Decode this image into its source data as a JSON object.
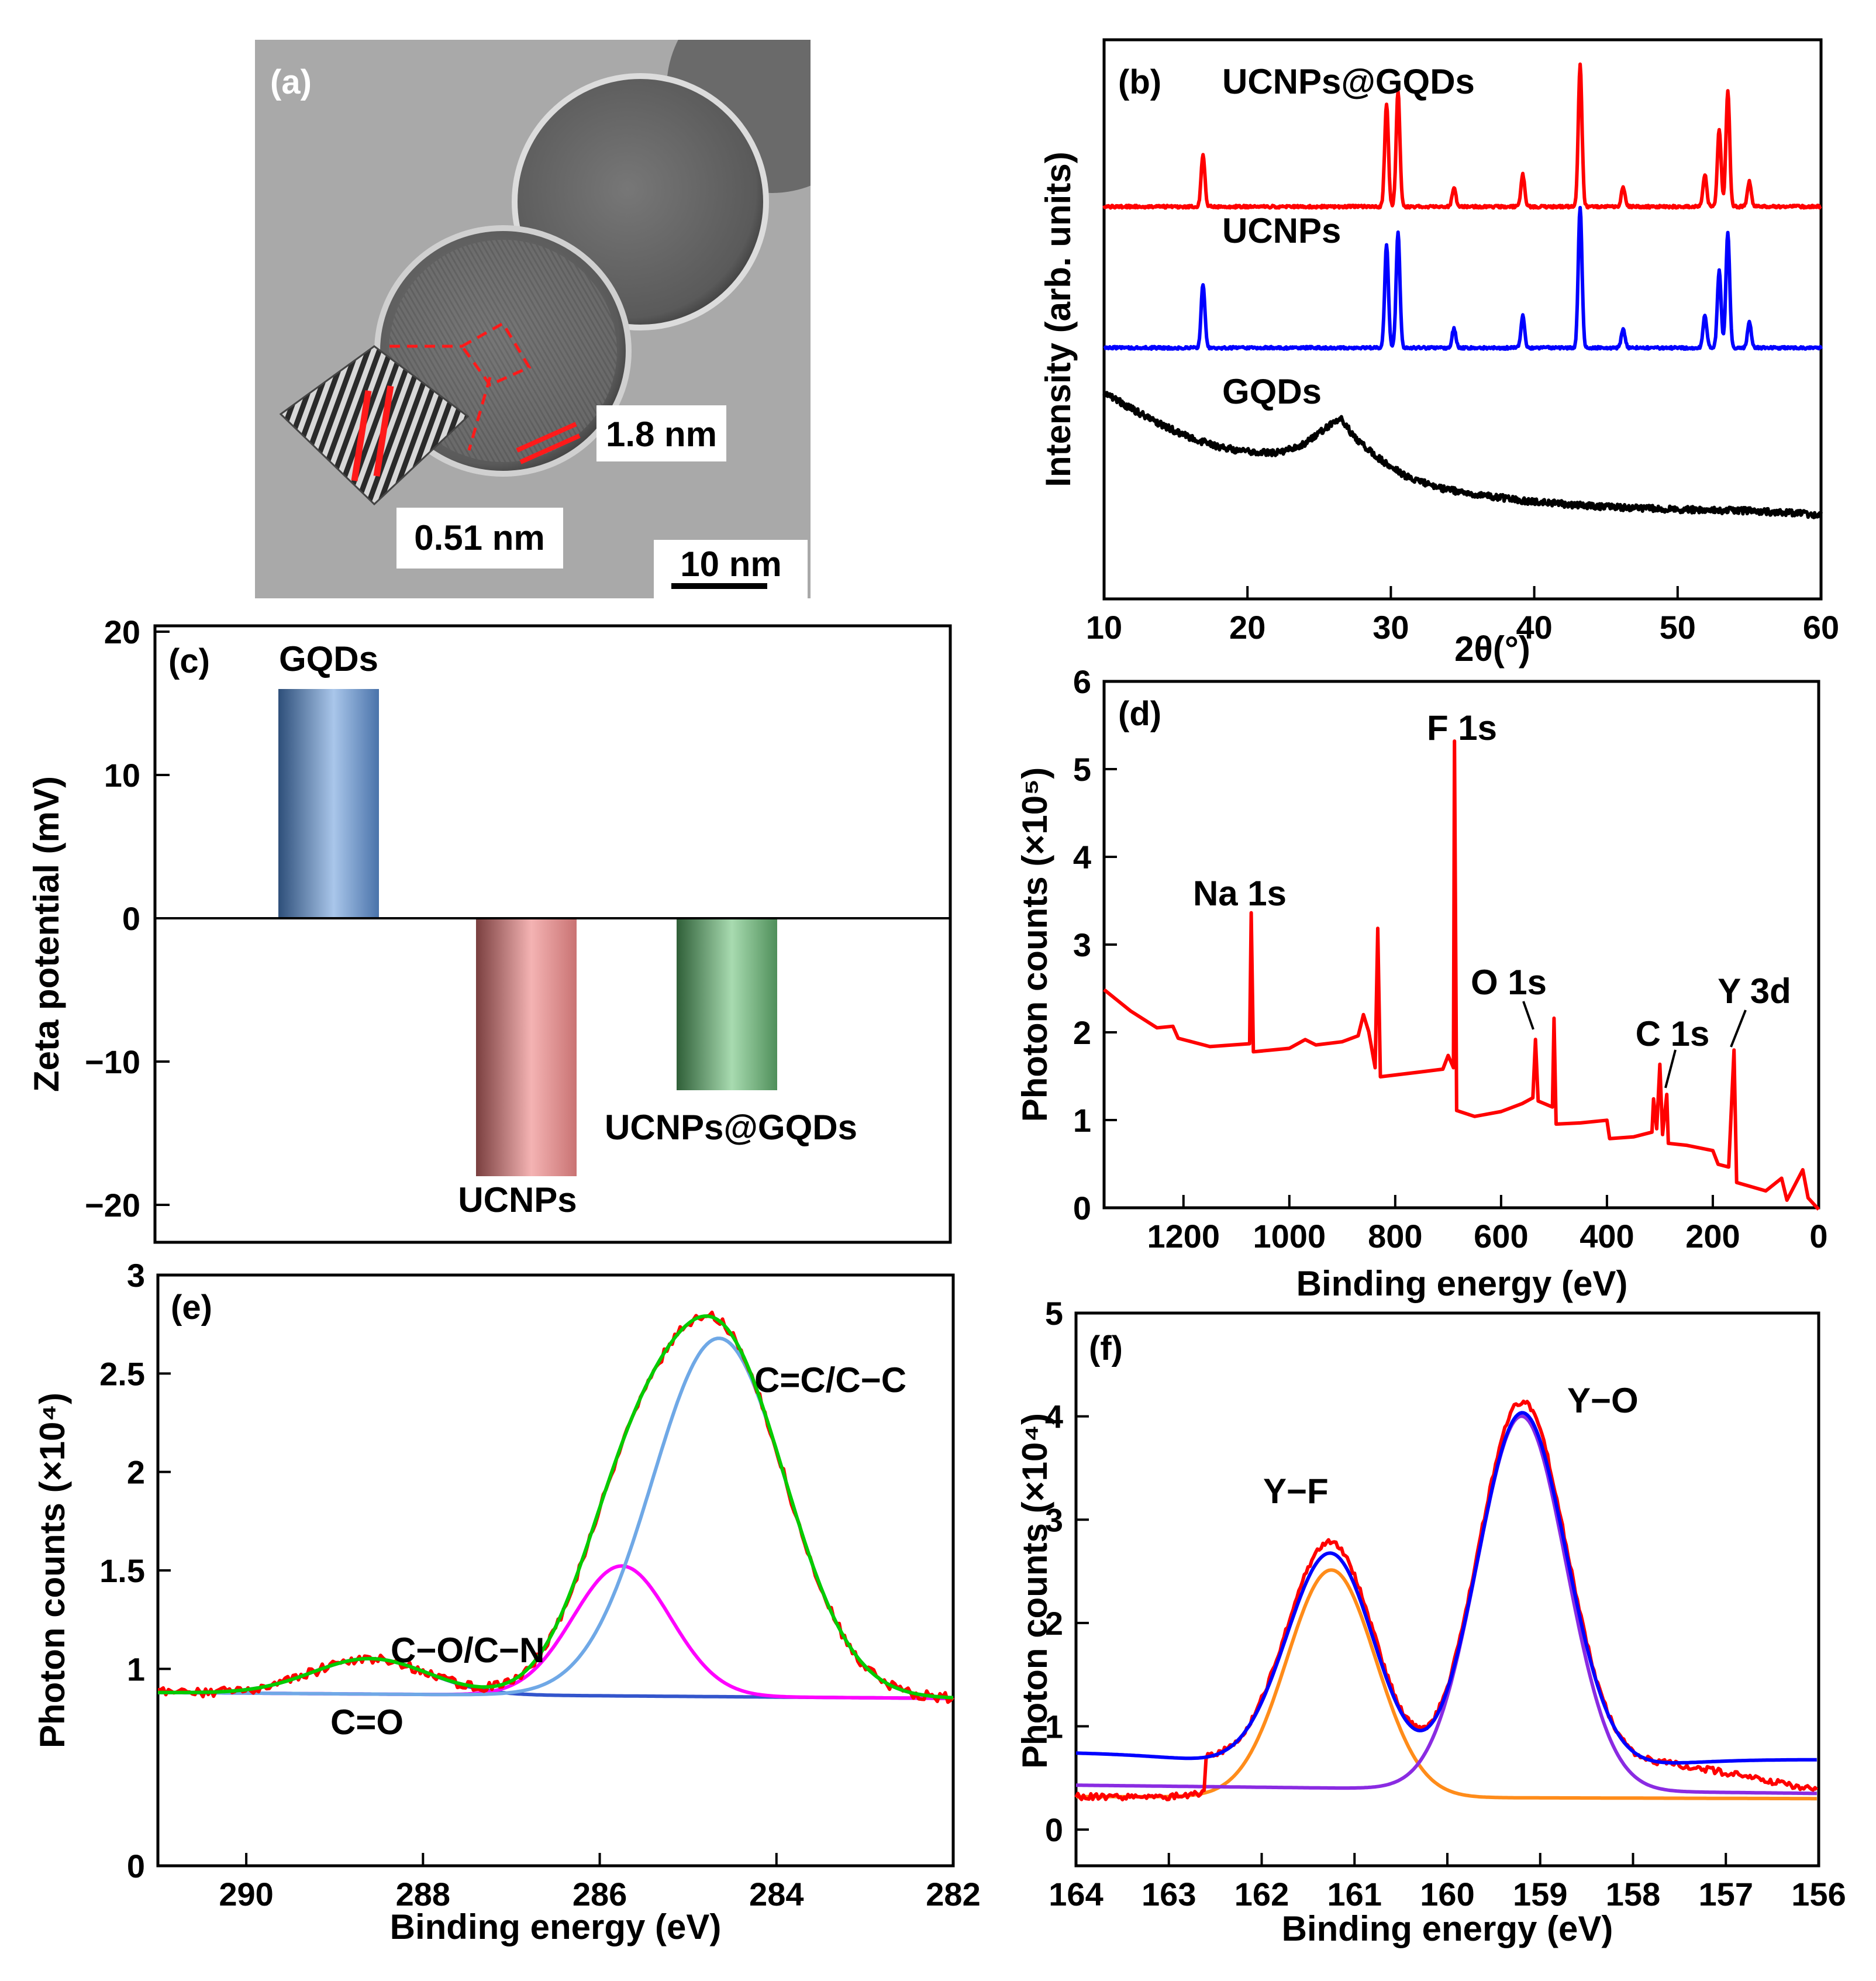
{
  "panel_a": {
    "label": "(a)",
    "scale_bar": "10 nm",
    "d1": "1.8 nm",
    "d2": "0.51 nm"
  },
  "chart_data": [
    {
      "id": "b",
      "type": "line",
      "panel_label": "(b)",
      "xlabel": "2θ(°)",
      "ylabel": "Intensity (arb. units)",
      "xlim": [
        10,
        60
      ],
      "xticks": [
        10,
        20,
        30,
        40,
        50,
        60
      ],
      "y_ticks": "none",
      "series": [
        {
          "name": "UCNPs@GQDs",
          "color": "#ff0000",
          "offset": 2.4,
          "peaks": [
            [
              16.9,
              0.4
            ],
            [
              29.7,
              0.8
            ],
            [
              30.5,
              0.9
            ],
            [
              34.4,
              0.15
            ],
            [
              39.2,
              0.25
            ],
            [
              43.2,
              1.1
            ],
            [
              46.2,
              0.15
            ],
            [
              51.9,
              0.25
            ],
            [
              52.9,
              0.6
            ],
            [
              53.5,
              0.9
            ],
            [
              55.0,
              0.2
            ]
          ]
        },
        {
          "name": "UCNPs",
          "color": "#0000ff",
          "offset": 1.3,
          "peaks": [
            [
              16.9,
              0.5
            ],
            [
              29.7,
              0.8
            ],
            [
              30.5,
              0.9
            ],
            [
              34.4,
              0.15
            ],
            [
              39.2,
              0.25
            ],
            [
              43.2,
              1.1
            ],
            [
              46.2,
              0.15
            ],
            [
              51.9,
              0.25
            ],
            [
              52.9,
              0.6
            ],
            [
              53.5,
              0.9
            ],
            [
              55.0,
              0.2
            ]
          ]
        },
        {
          "name": "GQDs",
          "color": "#000000",
          "offset": 0.0,
          "points": [
            [
              10,
              0.95
            ],
            [
              12,
              0.82
            ],
            [
              14,
              0.7
            ],
            [
              16,
              0.6
            ],
            [
              18,
              0.53
            ],
            [
              20,
              0.49
            ],
            [
              22,
              0.48
            ],
            [
              24,
              0.55
            ],
            [
              25.5,
              0.68
            ],
            [
              26.5,
              0.75
            ],
            [
              27.5,
              0.6
            ],
            [
              29,
              0.45
            ],
            [
              31,
              0.3
            ],
            [
              33,
              0.22
            ],
            [
              35,
              0.17
            ],
            [
              40,
              0.1
            ],
            [
              45,
              0.06
            ],
            [
              50,
              0.04
            ],
            [
              55,
              0.03
            ],
            [
              60,
              0.0
            ]
          ]
        }
      ]
    },
    {
      "id": "c",
      "type": "bar",
      "panel_label": "(c)",
      "ylabel": "Zeta potential (mV)",
      "ylim": [
        -20,
        20
      ],
      "yticks": [
        "-20",
        "-10",
        "0",
        "10",
        "20"
      ],
      "categories": [
        "GQDs",
        "UCNPs",
        "UCNPs@GQDs"
      ],
      "values": [
        16,
        -18,
        -12
      ],
      "colors": [
        "#5b82b8",
        "#d98a8a",
        "#5e9e6a"
      ]
    },
    {
      "id": "d",
      "type": "line",
      "panel_label": "(d)",
      "xlabel": "Binding energy (eV)",
      "ylabel": "Photon counts (×10⁵)",
      "xlim": [
        1350,
        0
      ],
      "ylim": [
        0,
        6
      ],
      "xticks": [
        "1200",
        "1000",
        "800",
        "600",
        "400",
        "200",
        "0"
      ],
      "yticks": [
        "0",
        "1",
        "2",
        "3",
        "4",
        "5",
        "6"
      ],
      "annotations": [
        "F 1s",
        "Na 1s",
        "O 1s",
        "C 1s",
        "Y 3d"
      ],
      "series": [
        {
          "color": "#ff0000",
          "points": [
            [
              1350,
              2.5
            ],
            [
              1300,
              2.25
            ],
            [
              1250,
              2.05
            ],
            [
              1220,
              2.05
            ],
            [
              1210,
              1.92
            ],
            [
              1150,
              1.85
            ],
            [
              1075,
              1.85
            ],
            [
              1072,
              3.35
            ],
            [
              1068,
              1.78
            ],
            [
              1000,
              1.8
            ],
            [
              970,
              1.92
            ],
            [
              950,
              1.85
            ],
            [
              900,
              1.9
            ],
            [
              870,
              1.95
            ],
            [
              860,
              2.2
            ],
            [
              850,
              2.0
            ],
            [
              838,
              1.6
            ],
            [
              833,
              3.2
            ],
            [
              828,
              1.5
            ],
            [
              750,
              1.55
            ],
            [
              710,
              1.6
            ],
            [
              700,
              1.75
            ],
            [
              690,
              1.6
            ],
            [
              688,
              5.3
            ],
            [
              684,
              1.1
            ],
            [
              650,
              1.05
            ],
            [
              600,
              1.1
            ],
            [
              560,
              1.2
            ],
            [
              540,
              1.25
            ],
            [
              535,
              1.9
            ],
            [
              530,
              1.2
            ],
            [
              503,
              1.15
            ],
            [
              500,
              2.15
            ],
            [
              496,
              0.95
            ],
            [
              450,
              0.95
            ],
            [
              400,
              1.0
            ],
            [
              395,
              0.8
            ],
            [
              350,
              0.8
            ],
            [
              315,
              0.85
            ],
            [
              312,
              1.25
            ],
            [
              306,
              0.9
            ],
            [
              300,
              1.65
            ],
            [
              295,
              0.85
            ],
            [
              287,
              1.3
            ],
            [
              284,
              0.75
            ],
            [
              250,
              0.7
            ],
            [
              200,
              0.65
            ],
            [
              190,
              0.5
            ],
            [
              170,
              0.45
            ],
            [
              160,
              1.8
            ],
            [
              155,
              0.3
            ],
            [
              100,
              0.2
            ],
            [
              70,
              0.35
            ],
            [
              60,
              0.1
            ],
            [
              30,
              0.45
            ],
            [
              20,
              0.1
            ],
            [
              0,
              0.0
            ]
          ]
        }
      ]
    },
    {
      "id": "e",
      "type": "line",
      "panel_label": "(e)",
      "xlabel": "Binding energy (eV)",
      "ylabel": "Photon counts (×10⁴)",
      "xlim": [
        291,
        282
      ],
      "ylim": [
        0,
        3
      ],
      "xticks": [
        "290",
        "288",
        "286",
        "284",
        "282"
      ],
      "yticks": [
        "0",
        "1",
        "1.5",
        "2",
        "2.5",
        "3"
      ],
      "annotations": [
        "C=C/C−C",
        "C−O/C−N",
        "C=O"
      ],
      "baseline": [
        0.88,
        0.85
      ],
      "series": [
        {
          "role": "measured",
          "color": "#ff0000"
        },
        {
          "role": "envelope",
          "color": "#00cc00"
        },
        {
          "role": "C=C/C-C",
          "color": "#6fa8e6",
          "center": 284.65,
          "height": 1.82,
          "sigma": 0.75
        },
        {
          "role": "C-O/C-N",
          "color": "#ff00ff",
          "center": 285.75,
          "height": 0.66,
          "sigma": 0.55
        },
        {
          "role": "C=O",
          "color": "#3355cc",
          "center": 288.6,
          "height": 0.18,
          "sigma": 0.65
        }
      ]
    },
    {
      "id": "f",
      "type": "line",
      "panel_label": "(f)",
      "xlabel": "Binding energy (eV)",
      "ylabel": "Photon counts (×10⁴)",
      "xlim": [
        164,
        156
      ],
      "ylim": [
        0,
        5
      ],
      "xticks": [
        "164",
        "163",
        "162",
        "161",
        "160",
        "159",
        "158",
        "157",
        "156"
      ],
      "yticks": [
        "0",
        "1",
        "2",
        "3",
        "4",
        "5"
      ],
      "annotations": [
        "Y−F",
        "Y−O"
      ],
      "series": [
        {
          "role": "measured",
          "color": "#ff0000"
        },
        {
          "role": "envelope",
          "color": "#0000ff",
          "base": [
            0.75,
            0.68
          ]
        },
        {
          "role": "Y-F",
          "color": "#ff8c1a",
          "center": 161.25,
          "height": 2.2,
          "sigma": 0.48,
          "base": [
            0.32,
            0.3
          ]
        },
        {
          "role": "Y-O",
          "color": "#8a2be2",
          "center": 159.2,
          "height": 3.62,
          "sigma": 0.48,
          "base": [
            0.43,
            0.35
          ]
        }
      ]
    }
  ]
}
